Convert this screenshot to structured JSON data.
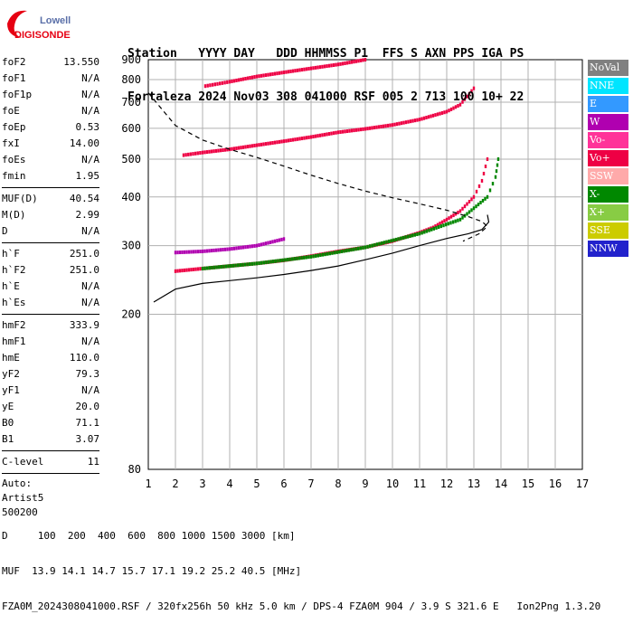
{
  "logo": {
    "line1": "Lowell",
    "line2": "DIGISONDE"
  },
  "header": {
    "line1": "Station   YYYY DAY   DDD HHMMSS P1  FFS S AXN PPS IGA PS",
    "line2": "Fortaleza 2024 Nov03 308 041000 RSF 005 2 713 100 10+ 22"
  },
  "params": [
    {
      "name": "foF2",
      "value": "13.550"
    },
    {
      "name": "foF1",
      "value": "N/A"
    },
    {
      "name": "foF1p",
      "value": "N/A"
    },
    {
      "name": "foE",
      "value": "N/A"
    },
    {
      "name": "foEp",
      "value": "0.53"
    },
    {
      "name": "fxI",
      "value": "14.00"
    },
    {
      "name": "foEs",
      "value": "N/A"
    },
    {
      "name": "fmin",
      "value": "1.95"
    },
    {
      "sep": true
    },
    {
      "name": "MUF(D)",
      "value": "40.54"
    },
    {
      "name": "M(D)",
      "value": "2.99"
    },
    {
      "name": "D",
      "value": "N/A"
    },
    {
      "sep": true
    },
    {
      "name": "h`F",
      "value": "251.0"
    },
    {
      "name": "h`F2",
      "value": "251.0"
    },
    {
      "name": "h`E",
      "value": "N/A"
    },
    {
      "name": "h`Es",
      "value": "N/A"
    },
    {
      "sep": true
    },
    {
      "name": "hmF2",
      "value": "333.9"
    },
    {
      "name": "hmF1",
      "value": "N/A"
    },
    {
      "name": "hmE",
      "value": "110.0"
    },
    {
      "name": "yF2",
      "value": "79.3"
    },
    {
      "name": "yF1",
      "value": "N/A"
    },
    {
      "name": "yE",
      "value": "20.0"
    },
    {
      "name": "B0",
      "value": "71.1"
    },
    {
      "name": "B1",
      "value": "3.07"
    },
    {
      "sep": true
    },
    {
      "name": "C-level",
      "value": "11"
    },
    {
      "sep": true
    },
    {
      "text": "Auto:"
    },
    {
      "text": "Artist5"
    },
    {
      "text": "500200"
    }
  ],
  "legend": [
    {
      "label": "NoVal",
      "color": "#808080"
    },
    {
      "label": "NNE",
      "color": "#00e5ff"
    },
    {
      "label": "E",
      "color": "#3399ff"
    },
    {
      "label": "W",
      "color": "#b000b0"
    },
    {
      "label": "Vo-",
      "color": "#ff3399"
    },
    {
      "label": "Vo+",
      "color": "#ee0044"
    },
    {
      "label": "SSW",
      "color": "#ffaaaa"
    },
    {
      "label": "X-",
      "color": "#008800"
    },
    {
      "label": "X+",
      "color": "#88cc44"
    },
    {
      "label": "SSE",
      "color": "#cccc00"
    },
    {
      "label": "NNW",
      "color": "#2222cc"
    }
  ],
  "footer": {
    "line1": "D     100  200  400  600  800 1000 1500 3000 [km]",
    "line2": "MUF  13.9 14.1 14.7 15.7 17.1 19.2 25.2 40.5 [MHz]",
    "line3": "FZA0M_2024308041000.RSF / 320fx256h 50 kHz 5.0 km / DPS-4 FZA0M 904 / 3.9 S 321.6 E   Ion2Png 1.3.20"
  },
  "chart_data": {
    "type": "scatter",
    "title": "",
    "xlabel": "",
    "ylabel": "",
    "xlim": [
      1,
      17
    ],
    "ylim": [
      80,
      900
    ],
    "y_scale": "log",
    "x_ticks": [
      1,
      2,
      3,
      4,
      5,
      6,
      7,
      8,
      9,
      10,
      11,
      12,
      13,
      14,
      15,
      16,
      17
    ],
    "y_ticks": [
      80,
      200,
      300,
      400,
      500,
      600,
      700,
      800,
      900
    ],
    "grid": true,
    "series": [
      {
        "name": "Vo+",
        "color": "#ee0044",
        "x": [
          2.0,
          3.0,
          4.0,
          5.0,
          6.0,
          7.0,
          8.0,
          9.0,
          10.0,
          11.0,
          11.5,
          12.0,
          12.5,
          13.0,
          13.3,
          13.5
        ],
        "y": [
          258,
          262,
          266,
          270,
          275,
          282,
          290,
          297,
          308,
          324,
          334,
          350,
          368,
          400,
          440,
          500
        ]
      },
      {
        "name": "X-",
        "color": "#008800",
        "x": [
          3.0,
          5.0,
          7.0,
          9.0,
          11.0,
          12.5,
          13.5,
          13.8,
          13.9
        ],
        "y": [
          262,
          270,
          281,
          297,
          322,
          350,
          400,
          450,
          500
        ]
      },
      {
        "name": "W",
        "color": "#b000b0",
        "x": [
          2.0,
          3.0,
          4.0,
          5.0,
          6.0
        ],
        "y": [
          288,
          290,
          294,
          300,
          312
        ]
      },
      {
        "name": "Vo+",
        "color": "#ee0044",
        "x": [
          2.3,
          3.0,
          4.0,
          5.0,
          6.0,
          7.0,
          8.0,
          9.0,
          10.0,
          11.0,
          12.0,
          12.5,
          13.0
        ],
        "y": [
          512,
          520,
          530,
          543,
          556,
          570,
          586,
          598,
          612,
          632,
          662,
          690,
          760
        ]
      },
      {
        "name": "Vo+",
        "color": "#ee0044",
        "x": [
          3.1,
          4.0,
          5.0,
          6.0,
          7.0,
          8.0,
          9.0
        ],
        "y": [
          770,
          790,
          815,
          835,
          855,
          875,
          900
        ]
      }
    ],
    "profile_curve": {
      "x": [
        1.2,
        2.0,
        3.0,
        4.0,
        5.0,
        6.0,
        7.0,
        8.0,
        9.0,
        10.0,
        11.0,
        12.0,
        12.8,
        13.3,
        13.55,
        13.5
      ],
      "y": [
        215,
        232,
        240,
        244,
        248,
        253,
        259,
        266,
        276,
        287,
        300,
        313,
        322,
        330,
        345,
        360
      ]
    },
    "dashed_curve": {
      "x": [
        1.0,
        2.0,
        3.0,
        4.0,
        5.0,
        6.0,
        7.0,
        8.0,
        9.0,
        10.0,
        11.0,
        12.0,
        12.8,
        13.3,
        13.5,
        13.2,
        12.6
      ],
      "y": [
        740,
        610,
        560,
        530,
        505,
        480,
        455,
        433,
        414,
        398,
        384,
        370,
        356,
        346,
        336,
        322,
        308
      ]
    }
  }
}
